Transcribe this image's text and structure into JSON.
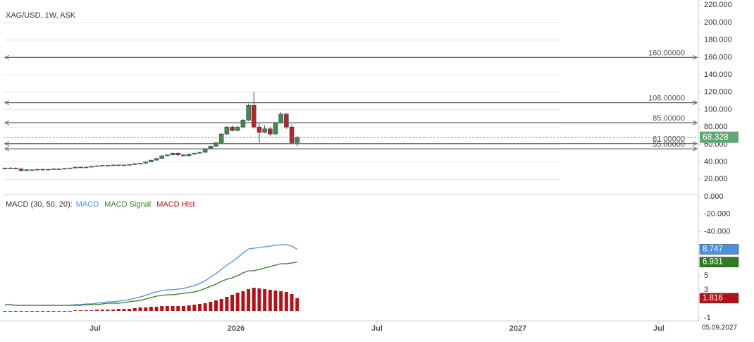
{
  "chart_data": [
    {
      "type": "candlestick",
      "title": "XAG/USD, 1W, ASK",
      "x": [
        2025.18,
        2025.1992,
        2025.2184,
        2025.2376,
        2025.2568,
        2025.276,
        2025.2952,
        2025.3144,
        2025.3336,
        2025.3528,
        2025.372,
        2025.3912,
        2025.4104,
        2025.4296,
        2025.4488,
        2025.468,
        2025.4872,
        2025.5064,
        2025.5256,
        2025.5448,
        2025.564,
        2025.5832,
        2025.6024,
        2025.6216,
        2025.6408,
        2025.66,
        2025.6792,
        2025.6984,
        2025.7176,
        2025.7368,
        2025.756,
        2025.7752,
        2025.7944,
        2025.8136,
        2025.8328,
        2025.852,
        2025.8712,
        2025.8904,
        2025.9096,
        2025.9288,
        2025.948,
        2025.9672,
        2025.9864,
        2026.0056,
        2026.0248,
        2026.044,
        2026.0632,
        2026.0824,
        2026.1016,
        2026.1208,
        2026.14,
        2026.1592,
        2026.1784,
        2026.1976,
        2026.2168
      ],
      "open": [
        32,
        33,
        33,
        32,
        30,
        31,
        31,
        31.5,
        31,
        31.5,
        32,
        32,
        32.5,
        33,
        34,
        33.5,
        34,
        35,
        35.5,
        36,
        36,
        36.5,
        36,
        36.5,
        37,
        38,
        38.5,
        40,
        42,
        44,
        47,
        48,
        50,
        48,
        47,
        49,
        50,
        51,
        55,
        58,
        62,
        72,
        80,
        76,
        80,
        88,
        105,
        80,
        74,
        78,
        72,
        85,
        95,
        80,
        62
      ],
      "high": [
        33.5,
        34,
        33.5,
        32.5,
        31.5,
        31.5,
        32,
        32,
        32,
        32.5,
        32.5,
        33,
        33.5,
        34.5,
        34.5,
        34.5,
        35.5,
        36,
        36.5,
        36.5,
        37,
        37,
        37,
        37.5,
        38.5,
        39,
        40.5,
        42.5,
        44.5,
        47.5,
        48.5,
        50.5,
        51,
        48.5,
        49.5,
        50.5,
        51.5,
        55.5,
        58.5,
        63,
        73,
        81,
        82,
        81,
        89,
        107,
        120,
        84,
        82,
        80,
        86,
        97,
        96,
        83,
        70
      ],
      "low": [
        31.5,
        32.5,
        31.5,
        29,
        29.5,
        30.5,
        30.5,
        30.5,
        30.5,
        31,
        31.5,
        31.5,
        32,
        32.5,
        33,
        33,
        33.5,
        34.5,
        35,
        35.5,
        35.5,
        35.5,
        35.5,
        36,
        36.5,
        37.5,
        38,
        39.5,
        41.5,
        43.5,
        46.5,
        47.5,
        47,
        46.5,
        46.5,
        48.5,
        49.5,
        50.5,
        54.5,
        57.5,
        61,
        71,
        75,
        75,
        79,
        87,
        78,
        62,
        73,
        70,
        71,
        84,
        78,
        61,
        58
      ],
      "close": [
        33,
        33,
        32,
        30,
        31,
        31,
        31.5,
        31,
        31.5,
        32,
        32,
        32.5,
        33,
        34,
        33.5,
        34,
        35,
        35.5,
        36,
        36,
        36.5,
        36,
        36.5,
        37,
        38,
        38.5,
        40,
        42,
        44,
        47,
        48,
        50,
        48,
        47,
        49,
        50,
        51,
        55,
        58,
        62,
        72,
        80,
        76,
        80,
        88,
        105,
        80,
        74,
        78,
        72,
        85,
        95,
        80,
        62,
        68.328
      ],
      "up_color": "#3f8a4c",
      "down_color": "#b3262b",
      "last_price_color": "#5fa874",
      "level_color": "#666666",
      "xlim": [
        2025.175,
        2027.64
      ],
      "xticks": [
        {
          "value": 2025.5,
          "label": "Jul"
        },
        2026,
        {
          "value": 2026.5,
          "label": "Jul"
        },
        2027,
        {
          "value": 2027.5,
          "label": "Jul"
        }
      ],
      "ylim": [
        -50,
        220
      ],
      "yticks": [
        {
          "value": -40,
          "label": "-40.000"
        },
        {
          "value": -20,
          "label": "-20.000"
        },
        {
          "value": 0,
          "label": "0.000"
        },
        {
          "value": 20,
          "label": "20.000"
        },
        {
          "value": 40,
          "label": "40.000"
        },
        {
          "value": 60,
          "label": "60.000"
        },
        {
          "value": 80,
          "label": "80.000"
        },
        {
          "value": 100,
          "label": "100.000"
        },
        {
          "value": 120,
          "label": "120.000"
        },
        {
          "value": 140,
          "label": "140.000"
        },
        {
          "value": 160,
          "label": "160.000"
        },
        {
          "value": 180,
          "label": "180.000"
        },
        {
          "value": 200,
          "label": "200.000"
        },
        {
          "value": 220,
          "label": "220.000"
        }
      ],
      "levels": [
        {
          "value": 160,
          "label": "160.00000"
        },
        {
          "value": 108,
          "label": "108.00000"
        },
        {
          "value": 85,
          "label": "85.00000"
        },
        {
          "value": 61,
          "label": "61.00000"
        },
        {
          "value": 55,
          "label": "55.00000"
        }
      ],
      "grid": true,
      "cursor_date": "05.09.2027"
    },
    {
      "type": "macd",
      "title": "MACD (30, 50, 20):",
      "ylim": [
        -1.4,
        15.8
      ],
      "yticks": [
        5,
        3,
        -1
      ],
      "series": [
        {
          "name": "MACD",
          "color": "#4a8fe0",
          "kind": "line",
          "values": [
            0.9,
            0.9,
            0.8,
            0.8,
            0.8,
            0.8,
            0.8,
            0.8,
            0.8,
            0.8,
            0.8,
            0.8,
            0.8,
            0.9,
            0.9,
            1.0,
            1.0,
            1.1,
            1.2,
            1.3,
            1.3,
            1.4,
            1.5,
            1.6,
            1.8,
            2.0,
            2.2,
            2.5,
            2.7,
            2.9,
            3.0,
            3.0,
            3.1,
            3.2,
            3.4,
            3.6,
            3.9,
            4.3,
            4.8,
            5.3,
            5.9,
            6.5,
            7.0,
            7.6,
            8.2,
            8.8,
            8.9,
            9.0,
            9.1,
            9.2,
            9.3,
            9.4,
            9.4,
            9.2,
            8.747
          ]
        },
        {
          "name": "MACD Signal",
          "color": "#2f7d22",
          "kind": "line",
          "values": [
            0.9,
            0.9,
            0.8,
            0.8,
            0.8,
            0.8,
            0.8,
            0.8,
            0.8,
            0.8,
            0.8,
            0.8,
            0.8,
            0.8,
            0.8,
            0.9,
            0.9,
            0.9,
            1.0,
            1.1,
            1.1,
            1.1,
            1.2,
            1.3,
            1.4,
            1.5,
            1.7,
            1.9,
            2.1,
            2.2,
            2.3,
            2.3,
            2.4,
            2.5,
            2.6,
            2.7,
            2.9,
            3.2,
            3.5,
            3.8,
            4.2,
            4.5,
            4.7,
            5.0,
            5.4,
            5.7,
            5.7,
            5.9,
            6.1,
            6.3,
            6.5,
            6.7,
            6.7,
            6.8,
            6.931
          ]
        },
        {
          "name": "MACD Hist",
          "color": "#b0141a",
          "kind": "bar",
          "values": [
            0,
            0,
            0,
            0,
            0,
            0,
            0,
            0,
            0,
            0,
            0,
            0,
            0,
            0.1,
            0.1,
            0.1,
            0.1,
            0.2,
            0.2,
            0.2,
            0.2,
            0.3,
            0.3,
            0.3,
            0.4,
            0.5,
            0.5,
            0.6,
            0.6,
            0.7,
            0.7,
            0.7,
            0.7,
            0.7,
            0.8,
            0.9,
            1.0,
            1.1,
            1.3,
            1.5,
            1.7,
            2.0,
            2.3,
            2.6,
            2.8,
            3.1,
            3.3,
            3.2,
            3.1,
            3.0,
            2.9,
            2.8,
            2.7,
            2.4,
            1.816
          ]
        }
      ]
    }
  ]
}
